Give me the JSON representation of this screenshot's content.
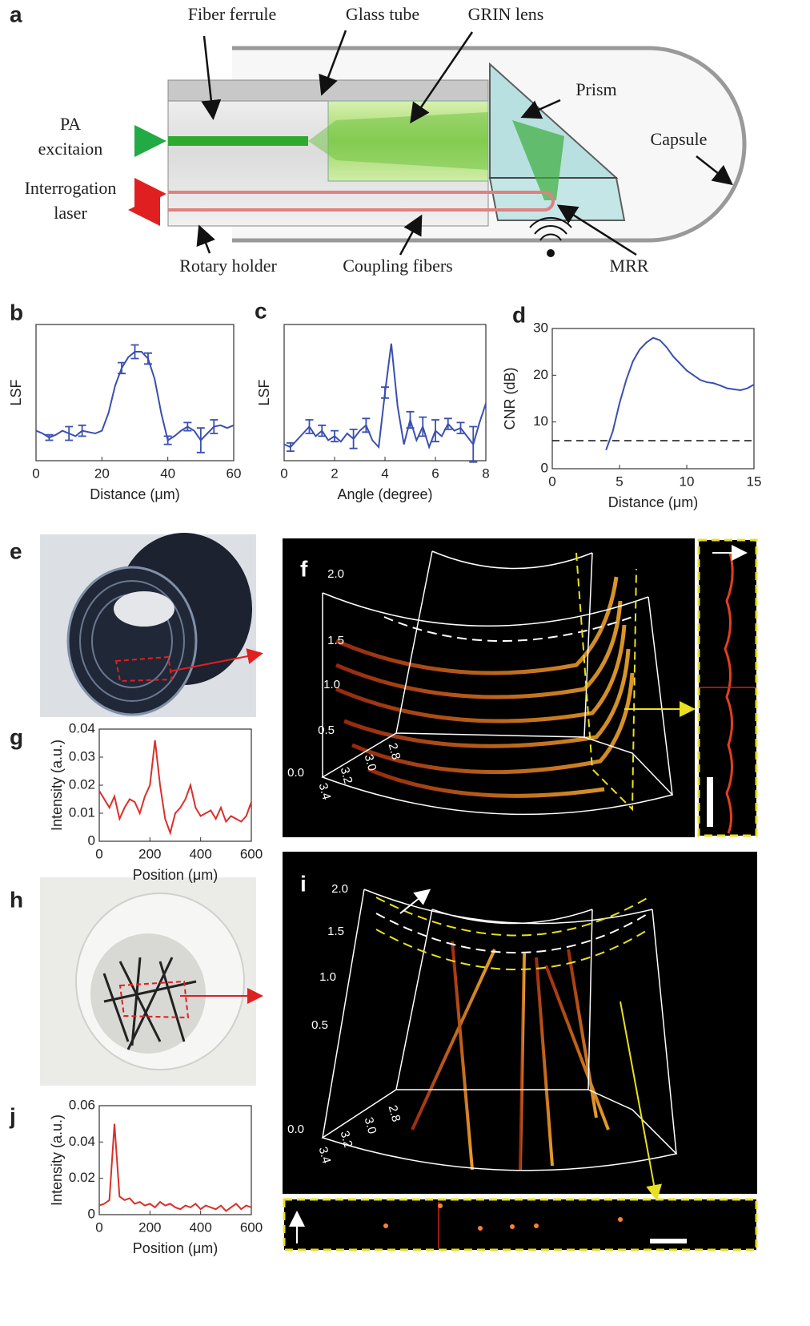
{
  "panels": {
    "letters": [
      "a",
      "b",
      "c",
      "d",
      "e",
      "f",
      "g",
      "h",
      "i",
      "j"
    ],
    "f": {
      "height_ticks": [
        "2.0",
        "1.5",
        "1.0",
        "0.5",
        "0.0"
      ],
      "depth_ticks": [
        "2.8",
        "3.0",
        "3.2",
        "3.4"
      ]
    },
    "i": {
      "height_ticks": [
        "2.0",
        "1.5",
        "1.0",
        "0.5",
        "0.0"
      ],
      "depth_ticks": [
        "2.8",
        "3.0",
        "3.2",
        "3.4"
      ]
    }
  },
  "diagram": {
    "labels": {
      "fiber_ferrule": "Fiber ferrule",
      "glass_tube": "Glass tube",
      "grin_lens": "GRIN lens",
      "prism": "Prism",
      "pa_excitation": [
        "PA",
        "excitaion"
      ],
      "capsule": "Capsule",
      "interrogation_laser": [
        "Interrogation",
        "laser"
      ],
      "rotary_holder": "Rotary holder",
      "coupling_fibers": "Coupling fibers",
      "mrr": "MRR"
    }
  },
  "chart_data": [
    {
      "type": "line",
      "xlabel": "Distance (μm)",
      "ylabel": "LSF",
      "color": "#3a4fb0",
      "x": [
        0,
        2,
        4,
        6,
        8,
        10,
        12,
        14,
        16,
        18,
        20,
        22,
        24,
        26,
        28,
        30,
        32,
        34,
        36,
        38,
        40,
        42,
        44,
        46,
        48,
        50,
        52,
        54,
        56,
        58,
        60
      ],
      "values": [
        0.22,
        0.2,
        0.17,
        0.19,
        0.22,
        0.2,
        0.18,
        0.22,
        0.21,
        0.2,
        0.22,
        0.35,
        0.55,
        0.68,
        0.76,
        0.8,
        0.8,
        0.75,
        0.6,
        0.35,
        0.15,
        0.18,
        0.22,
        0.25,
        0.22,
        0.15,
        0.2,
        0.25,
        0.26,
        0.24,
        0.26
      ],
      "errors": [
        null,
        null,
        0.02,
        null,
        null,
        0.05,
        null,
        0.04,
        null,
        null,
        null,
        null,
        null,
        0.04,
        null,
        0.05,
        null,
        0.04,
        null,
        null,
        0.03,
        null,
        null,
        0.03,
        null,
        0.09,
        null,
        0.05,
        null,
        null,
        null
      ],
      "xlim": [
        0,
        60
      ],
      "ylim": [
        0,
        1
      ],
      "xticks": [
        0,
        20,
        40,
        60
      ]
    },
    {
      "type": "line",
      "xlabel": "Angle (degree)",
      "ylabel": "LSF",
      "color": "#3a4fb0",
      "x": [
        0,
        0.25,
        0.5,
        0.75,
        1,
        1.25,
        1.5,
        1.75,
        2,
        2.25,
        2.5,
        2.75,
        3,
        3.25,
        3.5,
        3.75,
        4,
        4.25,
        4.5,
        4.75,
        5,
        5.25,
        5.5,
        5.75,
        6,
        6.25,
        6.5,
        6.75,
        7,
        7.25,
        7.5,
        7.75,
        8
      ],
      "values": [
        0.12,
        0.1,
        0.15,
        0.2,
        0.25,
        0.18,
        0.22,
        0.15,
        0.18,
        0.14,
        0.2,
        0.16,
        0.22,
        0.26,
        0.15,
        0.1,
        0.5,
        0.86,
        0.4,
        0.12,
        0.3,
        0.15,
        0.25,
        0.1,
        0.22,
        0.18,
        0.27,
        0.22,
        0.24,
        0.18,
        0.12,
        0.28,
        0.42
      ],
      "errors": [
        null,
        0.03,
        null,
        null,
        0.05,
        null,
        0.04,
        null,
        0.04,
        null,
        null,
        0.07,
        null,
        0.05,
        null,
        null,
        0.04,
        null,
        null,
        null,
        0.06,
        null,
        0.07,
        null,
        0.08,
        null,
        0.04,
        null,
        0.04,
        null,
        0.13,
        null,
        null
      ],
      "xlim": [
        0,
        8
      ],
      "ylim": [
        0,
        1
      ],
      "xticks": [
        0,
        2,
        4,
        6,
        8
      ]
    },
    {
      "type": "line",
      "xlabel": "Distance (μm)",
      "ylabel": "CNR (dB)",
      "color": "#3a4fb0",
      "x": [
        4,
        4.5,
        5,
        5.5,
        6,
        6.5,
        7,
        7.5,
        8,
        8.5,
        9,
        9.5,
        10,
        10.5,
        11,
        11.5,
        12,
        12.5,
        13,
        13.5,
        14,
        14.5,
        15
      ],
      "values": [
        4,
        8,
        14,
        19,
        23,
        25.5,
        27,
        28,
        27.5,
        26,
        24,
        22.5,
        21,
        20,
        19,
        18.5,
        18.3,
        17.8,
        17.2,
        17,
        16.8,
        17.2,
        18
      ],
      "threshold": 6,
      "xlim": [
        0,
        15
      ],
      "ylim": [
        0,
        30
      ],
      "xticks": [
        0,
        5,
        10,
        15
      ],
      "yticks": [
        0,
        10,
        20,
        30
      ]
    },
    {
      "type": "line",
      "xlabel": "Position (μm)",
      "ylabel": "Intensity (a.u.)",
      "color": "#d8302a",
      "x": [
        0,
        20,
        40,
        60,
        80,
        100,
        120,
        140,
        160,
        180,
        200,
        220,
        240,
        260,
        280,
        300,
        320,
        340,
        360,
        380,
        400,
        420,
        440,
        460,
        480,
        500,
        520,
        540,
        560,
        580,
        600
      ],
      "values": [
        0.018,
        0.015,
        0.012,
        0.016,
        0.008,
        0.012,
        0.015,
        0.014,
        0.01,
        0.016,
        0.02,
        0.036,
        0.02,
        0.008,
        0.003,
        0.01,
        0.012,
        0.015,
        0.02,
        0.012,
        0.009,
        0.01,
        0.011,
        0.008,
        0.012,
        0.007,
        0.009,
        0.008,
        0.007,
        0.009,
        0.014
      ],
      "xlim": [
        0,
        600
      ],
      "ylim": [
        0,
        0.04
      ],
      "xticks": [
        0,
        200,
        400,
        600
      ],
      "yticks": [
        0,
        0.01,
        0.02,
        0.03,
        0.04
      ]
    },
    {
      "type": "line",
      "xlabel": "Position (μm)",
      "ylabel": "Intensity (a.u.)",
      "color": "#d8302a",
      "x": [
        0,
        20,
        40,
        60,
        80,
        100,
        120,
        140,
        160,
        180,
        200,
        220,
        240,
        260,
        280,
        300,
        320,
        340,
        360,
        380,
        400,
        420,
        440,
        460,
        480,
        500,
        520,
        540,
        560,
        580,
        600
      ],
      "values": [
        0.005,
        0.006,
        0.008,
        0.05,
        0.01,
        0.008,
        0.009,
        0.006,
        0.007,
        0.005,
        0.006,
        0.004,
        0.007,
        0.005,
        0.006,
        0.004,
        0.003,
        0.005,
        0.004,
        0.006,
        0.003,
        0.005,
        0.004,
        0.003,
        0.005,
        0.002,
        0.004,
        0.006,
        0.003,
        0.005,
        0.004
      ],
      "xlim": [
        0,
        600
      ],
      "ylim": [
        0,
        0.06
      ],
      "xticks": [
        0,
        200,
        400,
        600
      ],
      "yticks": [
        0,
        0.02,
        0.04,
        0.06
      ]
    }
  ]
}
